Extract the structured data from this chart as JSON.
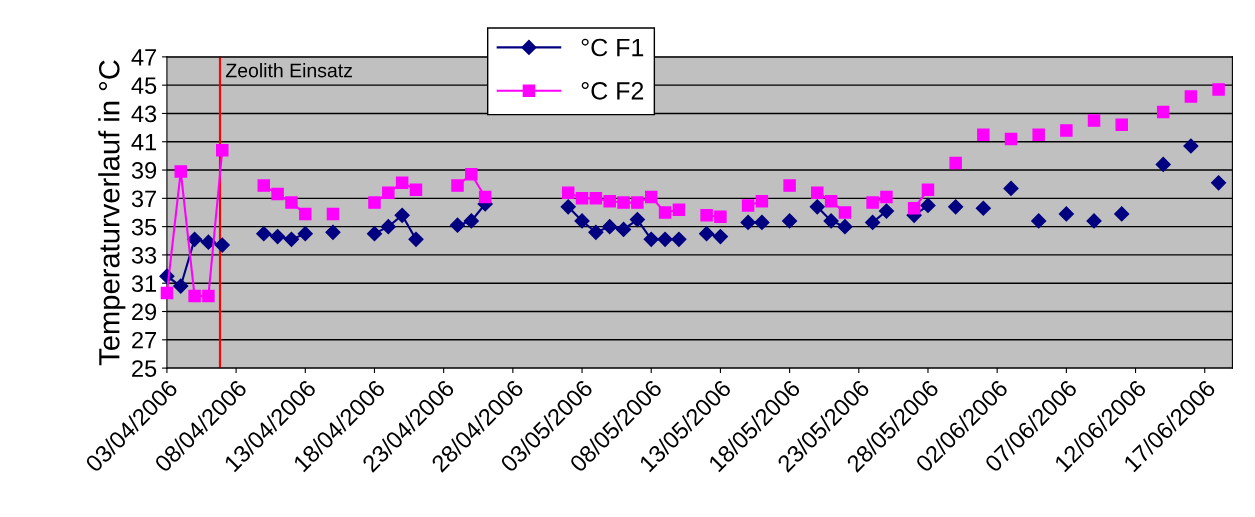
{
  "chart_data": {
    "type": "line",
    "ylabel": "Temperaturverlauf in °C",
    "x": [
      "2006-04-03",
      "2006-04-04",
      "2006-04-05",
      "2006-04-06",
      "2006-04-07",
      "2006-04-08",
      "2006-04-09",
      "2006-04-10",
      "2006-04-11",
      "2006-04-12",
      "2006-04-13",
      "2006-04-14",
      "2006-04-15",
      "2006-04-16",
      "2006-04-17",
      "2006-04-18",
      "2006-04-19",
      "2006-04-20",
      "2006-04-21",
      "2006-04-22",
      "2006-04-23",
      "2006-04-24",
      "2006-04-25",
      "2006-04-26",
      "2006-04-27",
      "2006-04-28",
      "2006-04-29",
      "2006-04-30",
      "2006-05-01",
      "2006-05-02",
      "2006-05-03",
      "2006-05-04",
      "2006-05-05",
      "2006-05-06",
      "2006-05-07",
      "2006-05-08",
      "2006-05-09",
      "2006-05-10",
      "2006-05-11",
      "2006-05-12",
      "2006-05-13",
      "2006-05-14",
      "2006-05-15",
      "2006-05-16",
      "2006-05-17",
      "2006-05-18",
      "2006-05-19",
      "2006-05-20",
      "2006-05-21",
      "2006-05-22",
      "2006-05-23",
      "2006-05-24",
      "2006-05-25",
      "2006-05-26",
      "2006-05-27",
      "2006-05-28",
      "2006-05-29",
      "2006-05-30",
      "2006-05-31",
      "2006-06-01",
      "2006-06-02",
      "2006-06-03",
      "2006-06-04",
      "2006-06-05",
      "2006-06-06",
      "2006-06-07",
      "2006-06-08",
      "2006-06-09",
      "2006-06-10",
      "2006-06-11",
      "2006-06-12",
      "2006-06-13",
      "2006-06-14",
      "2006-06-15",
      "2006-06-16",
      "2006-06-17",
      "2006-06-18"
    ],
    "series": [
      {
        "name": "°C F1",
        "color": "#000080",
        "marker": "diamond",
        "values": [
          31.5,
          30.8,
          34.1,
          33.9,
          33.7,
          null,
          null,
          34.5,
          34.3,
          34.1,
          34.5,
          null,
          34.6,
          null,
          null,
          34.5,
          35.0,
          35.8,
          34.1,
          null,
          null,
          35.1,
          35.4,
          36.6,
          null,
          null,
          null,
          null,
          null,
          36.4,
          35.4,
          34.6,
          35.0,
          34.8,
          35.5,
          34.1,
          34.1,
          34.1,
          null,
          34.5,
          34.3,
          null,
          35.3,
          35.3,
          null,
          35.4,
          null,
          36.4,
          35.4,
          35.0,
          null,
          35.3,
          36.1,
          null,
          35.8,
          36.5,
          null,
          36.4,
          null,
          36.3,
          null,
          37.7,
          null,
          35.4,
          null,
          35.9,
          null,
          35.4,
          null,
          35.9,
          null,
          null,
          39.4,
          null,
          40.7,
          null,
          38.1
        ]
      },
      {
        "name": "°C F2",
        "color": "#ff00ff",
        "marker": "square",
        "values": [
          30.3,
          38.9,
          30.1,
          30.1,
          40.4,
          null,
          null,
          37.9,
          37.3,
          36.7,
          35.9,
          null,
          35.9,
          null,
          null,
          36.7,
          37.4,
          38.1,
          37.6,
          null,
          null,
          37.9,
          38.7,
          37.1,
          null,
          null,
          null,
          null,
          null,
          37.4,
          37.0,
          37.0,
          36.8,
          36.7,
          36.7,
          37.1,
          36.0,
          36.2,
          null,
          35.8,
          35.7,
          null,
          36.5,
          36.8,
          null,
          37.9,
          null,
          37.4,
          36.8,
          36.0,
          null,
          36.7,
          37.1,
          null,
          36.3,
          37.6,
          null,
          39.5,
          null,
          41.5,
          null,
          41.2,
          null,
          41.5,
          null,
          41.8,
          null,
          42.5,
          null,
          42.2,
          null,
          null,
          43.1,
          null,
          44.2,
          null,
          44.7
        ]
      }
    ],
    "xlim": [
      "2006-04-03",
      "2006-06-19"
    ],
    "xticks": [
      {
        "value": "2006-04-03",
        "label": "03/04/2006"
      },
      {
        "value": "2006-04-08",
        "label": "08/04/2006"
      },
      {
        "value": "2006-04-13",
        "label": "13/04/2006"
      },
      {
        "value": "2006-04-18",
        "label": "18/04/2006"
      },
      {
        "value": "2006-04-23",
        "label": "23/04/2006"
      },
      {
        "value": "2006-04-28",
        "label": "28/04/2006"
      },
      {
        "value": "2006-05-03",
        "label": "03/05/2006"
      },
      {
        "value": "2006-05-08",
        "label": "08/05/2006"
      },
      {
        "value": "2006-05-13",
        "label": "13/05/2006"
      },
      {
        "value": "2006-05-18",
        "label": "18/05/2006"
      },
      {
        "value": "2006-05-23",
        "label": "23/05/2006"
      },
      {
        "value": "2006-05-28",
        "label": "28/05/2006"
      },
      {
        "value": "2006-06-02",
        "label": "02/06/2006"
      },
      {
        "value": "2006-06-07",
        "label": "07/06/2006"
      },
      {
        "value": "2006-06-12",
        "label": "12/06/2006"
      },
      {
        "value": "2006-06-17",
        "label": "17/06/2006"
      }
    ],
    "ylim": [
      25,
      47
    ],
    "yticks": [
      25,
      27,
      29,
      31,
      33,
      35,
      37,
      39,
      41,
      43,
      45,
      47
    ],
    "ref_lines": [
      {
        "axis": "x",
        "value": "2006-04-06T20:00",
        "label": "Zeolith Einsatz",
        "color": "#ff0000"
      }
    ],
    "grid": "y",
    "legend": "top",
    "line_style": "solid"
  }
}
